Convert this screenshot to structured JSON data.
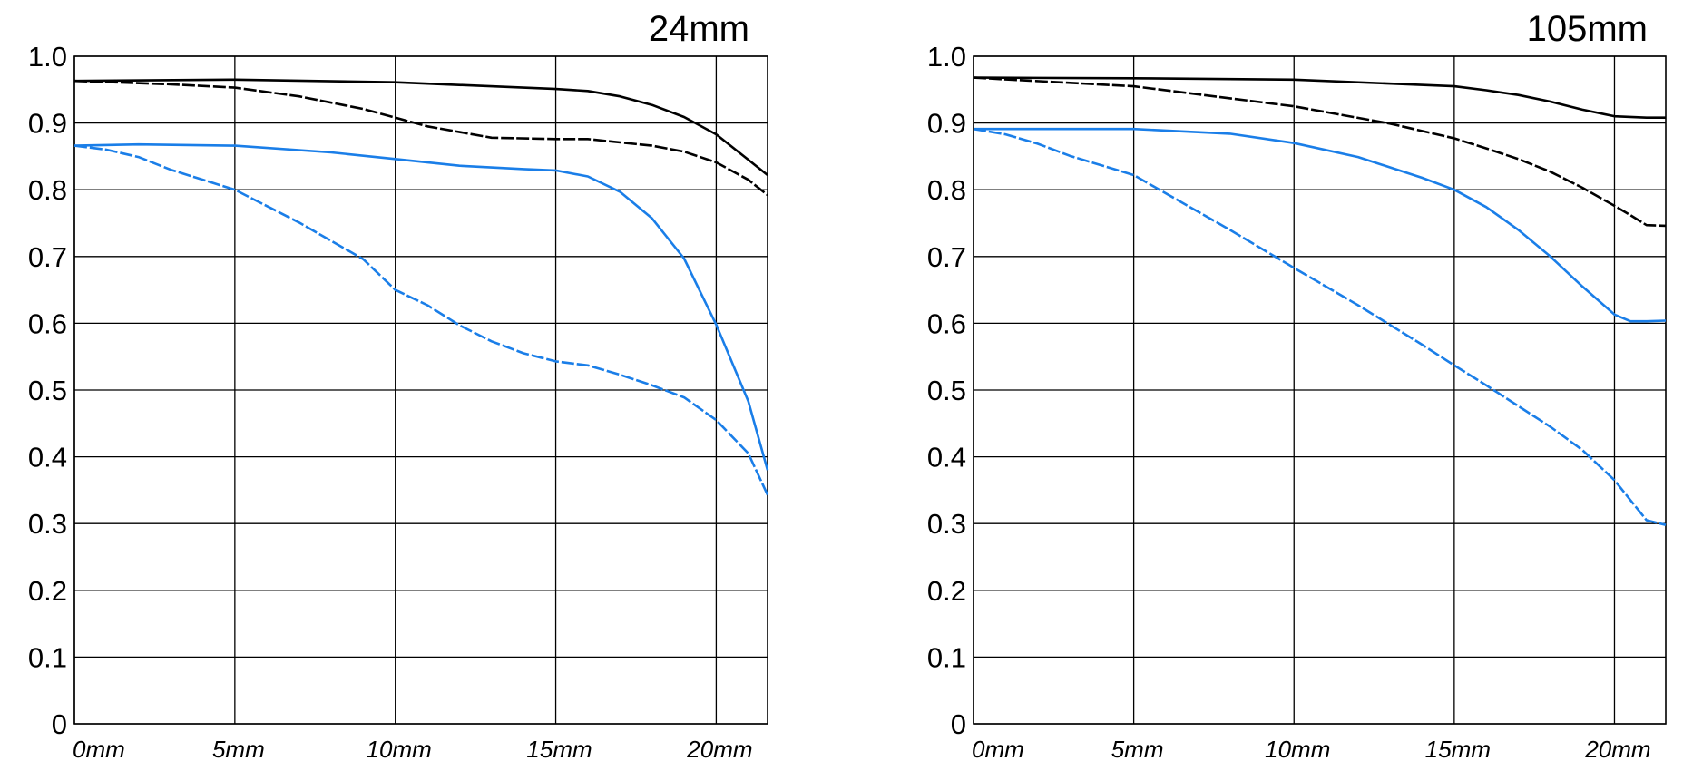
{
  "colors": {
    "sagittal_meridional_black": "#000000",
    "blue": "#1a7ee8",
    "grid": "#000000"
  },
  "chart_data": [
    {
      "type": "line",
      "title": "24mm",
      "xlabel": "",
      "ylabel": "",
      "xlim": [
        0,
        21.6
      ],
      "ylim": [
        0,
        1.0
      ],
      "grid": true,
      "x_ticks": [
        "0mm",
        "5mm",
        "10mm",
        "15mm",
        "20mm"
      ],
      "y_ticks": [
        "0",
        "0.1",
        "0.2",
        "0.3",
        "0.4",
        "0.5",
        "0.6",
        "0.7",
        "0.8",
        "0.9",
        "1.0"
      ],
      "series": [
        {
          "color": "#000000",
          "style": "solid",
          "points": [
            [
              0,
              0.963
            ],
            [
              5,
              0.965
            ],
            [
              10,
              0.961
            ],
            [
              15,
              0.951
            ],
            [
              16,
              0.948
            ],
            [
              17,
              0.94
            ],
            [
              18,
              0.927
            ],
            [
              19,
              0.909
            ],
            [
              20,
              0.883
            ],
            [
              21,
              0.845
            ],
            [
              21.6,
              0.822
            ]
          ]
        },
        {
          "color": "#000000",
          "style": "dashed",
          "points": [
            [
              0,
              0.963
            ],
            [
              3,
              0.958
            ],
            [
              5,
              0.953
            ],
            [
              7,
              0.94
            ],
            [
              9,
              0.921
            ],
            [
              11,
              0.895
            ],
            [
              13,
              0.878
            ],
            [
              15,
              0.876
            ],
            [
              16,
              0.876
            ],
            [
              18,
              0.866
            ],
            [
              19,
              0.857
            ],
            [
              20,
              0.841
            ],
            [
              21,
              0.815
            ],
            [
              21.6,
              0.792
            ]
          ]
        },
        {
          "color": "#1a7ee8",
          "style": "solid",
          "points": [
            [
              0,
              0.866
            ],
            [
              2,
              0.868
            ],
            [
              5,
              0.866
            ],
            [
              8,
              0.856
            ],
            [
              10,
              0.846
            ],
            [
              12,
              0.836
            ],
            [
              14,
              0.831
            ],
            [
              15,
              0.829
            ],
            [
              16,
              0.82
            ],
            [
              17,
              0.797
            ],
            [
              18,
              0.757
            ],
            [
              19,
              0.697
            ],
            [
              20,
              0.598
            ],
            [
              21,
              0.483
            ],
            [
              21.6,
              0.38
            ]
          ]
        },
        {
          "color": "#1a7ee8",
          "style": "dashed",
          "points": [
            [
              0,
              0.866
            ],
            [
              1,
              0.86
            ],
            [
              2,
              0.849
            ],
            [
              3,
              0.83
            ],
            [
              5,
              0.8
            ],
            [
              7,
              0.751
            ],
            [
              9,
              0.696
            ],
            [
              10,
              0.65
            ],
            [
              11,
              0.627
            ],
            [
              12,
              0.597
            ],
            [
              13,
              0.573
            ],
            [
              14,
              0.555
            ],
            [
              15,
              0.543
            ],
            [
              16,
              0.537
            ],
            [
              17,
              0.523
            ],
            [
              18,
              0.507
            ],
            [
              19,
              0.489
            ],
            [
              20,
              0.455
            ],
            [
              21,
              0.405
            ],
            [
              21.6,
              0.343
            ]
          ]
        }
      ]
    },
    {
      "type": "line",
      "title": "105mm",
      "xlabel": "",
      "ylabel": "",
      "xlim": [
        0,
        21.6
      ],
      "ylim": [
        0,
        1.0
      ],
      "grid": true,
      "x_ticks": [
        "0mm",
        "5mm",
        "10mm",
        "15mm",
        "20mm"
      ],
      "y_ticks": [
        "0",
        "0.1",
        "0.2",
        "0.3",
        "0.4",
        "0.5",
        "0.6",
        "0.7",
        "0.8",
        "0.9",
        "1.0"
      ],
      "series": [
        {
          "color": "#000000",
          "style": "solid",
          "points": [
            [
              0,
              0.968
            ],
            [
              5,
              0.967
            ],
            [
              10,
              0.965
            ],
            [
              15,
              0.955
            ],
            [
              16,
              0.949
            ],
            [
              17,
              0.942
            ],
            [
              18,
              0.932
            ],
            [
              19,
              0.92
            ],
            [
              20,
              0.91
            ],
            [
              21,
              0.908
            ],
            [
              21.6,
              0.908
            ]
          ]
        },
        {
          "color": "#000000",
          "style": "dashed",
          "points": [
            [
              0,
              0.968
            ],
            [
              5,
              0.955
            ],
            [
              10,
              0.925
            ],
            [
              13,
              0.899
            ],
            [
              15,
              0.877
            ],
            [
              16,
              0.862
            ],
            [
              17,
              0.846
            ],
            [
              18,
              0.827
            ],
            [
              19,
              0.803
            ],
            [
              20,
              0.776
            ],
            [
              20.5,
              0.762
            ],
            [
              21,
              0.747
            ],
            [
              21.6,
              0.746
            ]
          ]
        },
        {
          "color": "#1a7ee8",
          "style": "solid",
          "points": [
            [
              0,
              0.891
            ],
            [
              5,
              0.891
            ],
            [
              8,
              0.884
            ],
            [
              10,
              0.87
            ],
            [
              12,
              0.849
            ],
            [
              14,
              0.818
            ],
            [
              15,
              0.8
            ],
            [
              16,
              0.774
            ],
            [
              17,
              0.74
            ],
            [
              18,
              0.7
            ],
            [
              19,
              0.655
            ],
            [
              20,
              0.613
            ],
            [
              20.5,
              0.603
            ],
            [
              21,
              0.603
            ],
            [
              21.6,
              0.604
            ]
          ]
        },
        {
          "color": "#1a7ee8",
          "style": "dashed",
          "points": [
            [
              0,
              0.891
            ],
            [
              1,
              0.883
            ],
            [
              2,
              0.869
            ],
            [
              3,
              0.851
            ],
            [
              5,
              0.822
            ],
            [
              8,
              0.74
            ],
            [
              10,
              0.683
            ],
            [
              12,
              0.627
            ],
            [
              14,
              0.568
            ],
            [
              15,
              0.537
            ],
            [
              16,
              0.507
            ],
            [
              17,
              0.476
            ],
            [
              18,
              0.445
            ],
            [
              19,
              0.41
            ],
            [
              20,
              0.365
            ],
            [
              20.5,
              0.335
            ],
            [
              21,
              0.305
            ],
            [
              21.6,
              0.298
            ]
          ]
        }
      ]
    }
  ]
}
